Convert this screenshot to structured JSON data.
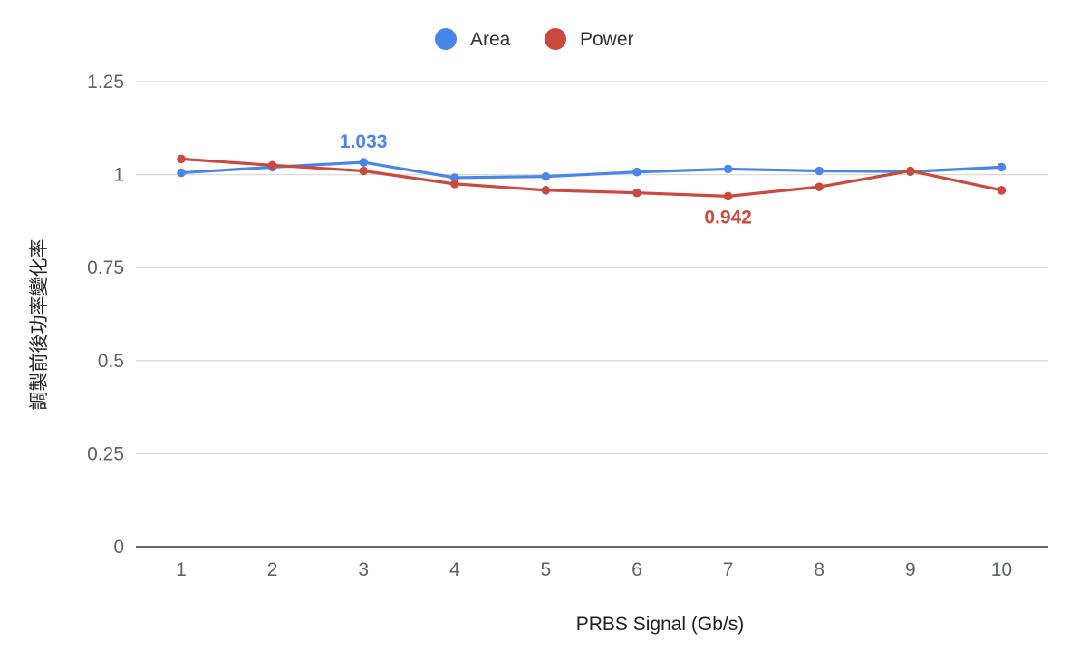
{
  "chart_data": {
    "type": "line",
    "title": "",
    "xlabel": "PRBS Signal (Gb/s)",
    "ylabel": "調製前後功率變化率",
    "x": [
      "1",
      "2",
      "3",
      "4",
      "5",
      "6",
      "7",
      "8",
      "9",
      "10"
    ],
    "yticks": [
      "0",
      "0.25",
      "0.5",
      "0.75",
      "1",
      "1.25"
    ],
    "ylim": [
      0,
      1.25
    ],
    "grid": true,
    "legend_position": "top",
    "series": [
      {
        "name": "Area",
        "color": "#4a86e8",
        "values": [
          1.005,
          1.02,
          1.033,
          0.992,
          0.995,
          1.007,
          1.015,
          1.01,
          1.008,
          1.02
        ],
        "annotation": {
          "index": 2,
          "text": "1.033",
          "position": "above"
        }
      },
      {
        "name": "Power",
        "color": "#cc4a3d",
        "values": [
          1.042,
          1.025,
          1.01,
          0.975,
          0.958,
          0.951,
          0.942,
          0.967,
          1.01,
          0.958
        ],
        "annotation": {
          "index": 6,
          "text": "0.942",
          "position": "below"
        }
      }
    ]
  }
}
